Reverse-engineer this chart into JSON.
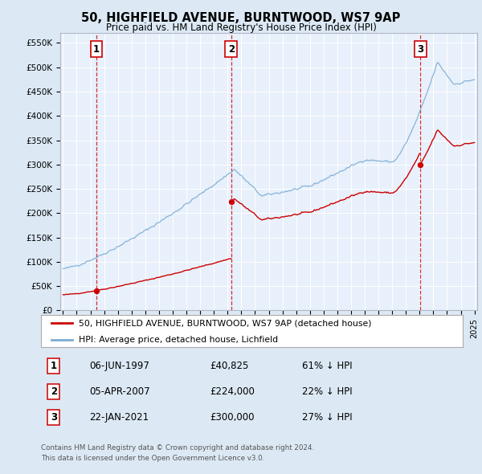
{
  "title": "50, HIGHFIELD AVENUE, BURNTWOOD, WS7 9AP",
  "subtitle": "Price paid vs. HM Land Registry's House Price Index (HPI)",
  "red_label": "50, HIGHFIELD AVENUE, BURNTWOOD, WS7 9AP (detached house)",
  "blue_label": "HPI: Average price, detached house, Lichfield",
  "footer1": "Contains HM Land Registry data © Crown copyright and database right 2024.",
  "footer2": "This data is licensed under the Open Government Licence v3.0.",
  "sale_points": [
    {
      "label": "1",
      "date_str": "06-JUN-1997",
      "price": 40825,
      "x_year": 1997.43
    },
    {
      "label": "2",
      "date_str": "05-APR-2007",
      "price": 224000,
      "x_year": 2007.26
    },
    {
      "label": "3",
      "date_str": "22-JAN-2021",
      "price": 300000,
      "x_year": 2021.06
    }
  ],
  "table_rows": [
    {
      "num": "1",
      "date": "06-JUN-1997",
      "price": "£40,825",
      "hpi": "61% ↓ HPI"
    },
    {
      "num": "2",
      "date": "05-APR-2007",
      "price": "£224,000",
      "hpi": "22% ↓ HPI"
    },
    {
      "num": "3",
      "date": "22-JAN-2021",
      "price": "£300,000",
      "hpi": "27% ↓ HPI"
    }
  ],
  "bg_color": "#dce9f5",
  "plot_bg": "#e8f0fb",
  "red_color": "#cc0000",
  "blue_color": "#7aadd4",
  "grid_color": "#ffffff",
  "xmin": 1994.8,
  "xmax": 2025.2,
  "ymin": 0,
  "ymax": 570000
}
